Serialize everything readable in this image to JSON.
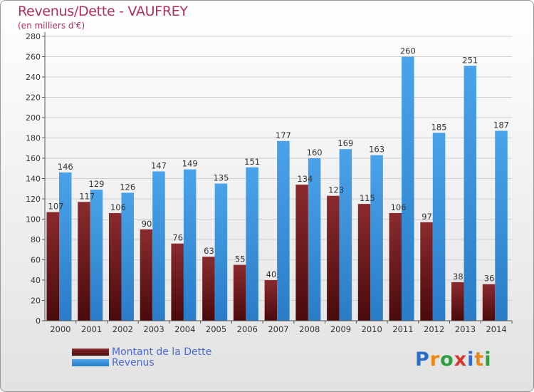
{
  "header": {
    "title": "Revenus/Dette - VAUFREY",
    "subtitle": "(en milliers d'€)"
  },
  "legend": {
    "debt_label": "Montant de la Dette",
    "revenue_label": "Revenus"
  },
  "logo": {
    "letters": [
      "P",
      "r",
      "o",
      "x",
      "i",
      "t",
      "i"
    ],
    "colors": [
      "#2b6dc7",
      "#e8891a",
      "#2e9e3e",
      "#d8372b",
      "#2b6dc7",
      "#e8891a",
      "#2e9e3e"
    ]
  },
  "colors": {
    "debt": "#7a1e20",
    "revenue": "#3f96e0"
  },
  "chart_data": {
    "type": "bar",
    "title": "Revenus/Dette - VAUFREY",
    "subtitle": "(en milliers d'€)",
    "categories": [
      "2000",
      "2001",
      "2002",
      "2003",
      "2004",
      "2005",
      "2006",
      "2007",
      "2008",
      "2009",
      "2010",
      "2011",
      "2012",
      "2013",
      "2014"
    ],
    "series": [
      {
        "name": "Montant de la Dette",
        "values": [
          107,
          117,
          106,
          90,
          76,
          63,
          55,
          40,
          134,
          123,
          115,
          106,
          97,
          38,
          36
        ]
      },
      {
        "name": "Revenus",
        "values": [
          146,
          129,
          126,
          147,
          149,
          135,
          151,
          177,
          160,
          169,
          163,
          260,
          185,
          251,
          187
        ]
      }
    ],
    "ylim": [
      0,
      280
    ],
    "yticks": [
      0,
      20,
      40,
      60,
      80,
      100,
      120,
      140,
      160,
      180,
      200,
      220,
      240,
      260,
      280
    ],
    "grid": true,
    "legend_position": "bottom-left"
  }
}
